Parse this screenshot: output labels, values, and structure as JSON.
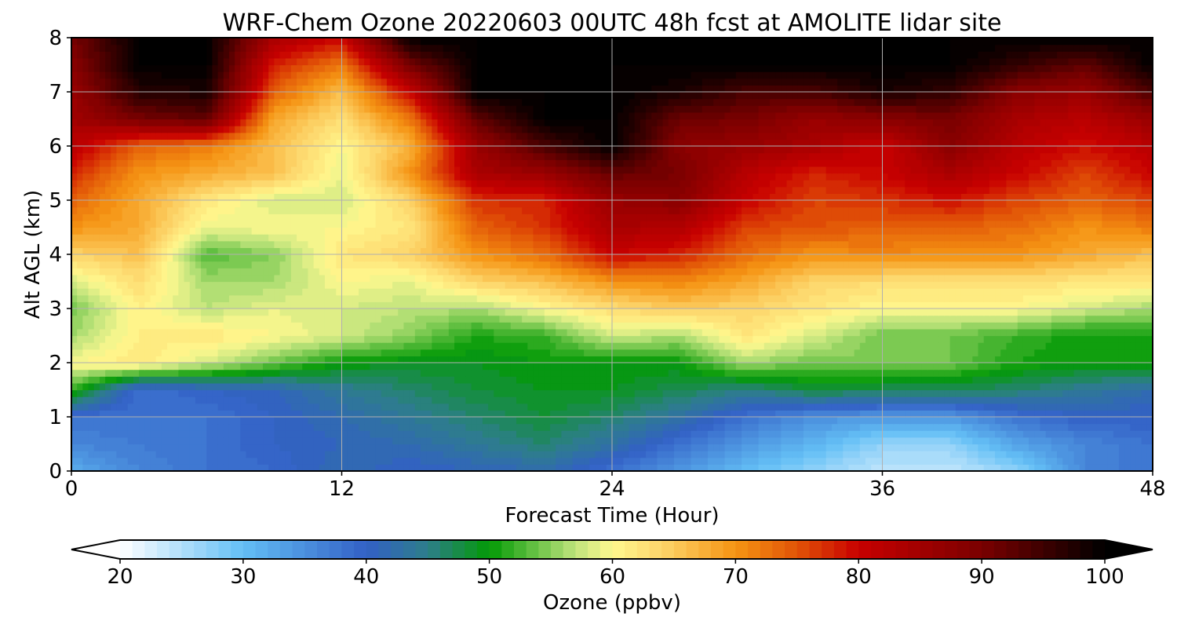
{
  "chart_data": {
    "type": "heatmap",
    "title": "WRF-Chem Ozone  20220603 00UTC 48h fcst at AMOLITE lidar site",
    "xlabel": "Forecast Time (Hour)",
    "ylabel": "Alt AGL (km)",
    "xlim": [
      0,
      48
    ],
    "ylim": [
      0,
      8
    ],
    "xticks": [
      0,
      12,
      24,
      36,
      48
    ],
    "yticks": [
      0,
      1,
      2,
      3,
      4,
      5,
      6,
      7,
      8
    ],
    "grid": true,
    "colorbar": {
      "label": "Ozone  (ppbv)",
      "orientation": "horizontal",
      "placement": "bottom",
      "min": 20,
      "max": 100,
      "levels_step": 1,
      "extend": "both",
      "ticks": [
        20,
        30,
        40,
        50,
        60,
        70,
        80,
        90,
        100
      ],
      "color_stops": [
        {
          "value": 20,
          "color": "#ffffff"
        },
        {
          "value": 30,
          "color": "#63bff5"
        },
        {
          "value": 40,
          "color": "#3360c6"
        },
        {
          "value": 45,
          "color": "#2d7e8a"
        },
        {
          "value": 50,
          "color": "#039a06"
        },
        {
          "value": 57,
          "color": "#bfe47c"
        },
        {
          "value": 60,
          "color": "#fff88f"
        },
        {
          "value": 64,
          "color": "#fdd56a"
        },
        {
          "value": 70,
          "color": "#f59413"
        },
        {
          "value": 75,
          "color": "#e15307"
        },
        {
          "value": 80,
          "color": "#c80000"
        },
        {
          "value": 90,
          "color": "#7a0000"
        },
        {
          "value": 100,
          "color": "#000000"
        }
      ]
    },
    "grid_times_h": [
      0,
      3,
      6,
      9,
      12,
      15,
      18,
      21,
      24,
      27,
      30,
      33,
      36,
      39,
      42,
      45,
      48
    ],
    "grid_alts_km": [
      0,
      0.5,
      1,
      1.5,
      2,
      2.5,
      3,
      3.5,
      4,
      4.5,
      5,
      5.5,
      6,
      6.5,
      7,
      7.5,
      8
    ],
    "ozone_ppbv": [
      [
        32,
        36,
        38,
        39,
        42,
        40,
        41,
        42,
        38,
        34,
        30,
        27,
        24,
        24,
        27,
        36,
        38
      ],
      [
        36,
        37,
        38,
        40,
        41,
        42,
        44,
        46,
        43,
        38,
        34,
        31,
        27,
        27,
        33,
        36,
        38
      ],
      [
        38,
        38,
        38,
        40,
        42,
        44,
        46,
        48,
        46,
        43,
        38,
        35,
        34,
        34,
        38,
        40,
        40
      ],
      [
        52,
        38,
        40,
        41,
        44,
        46,
        48,
        49,
        49,
        47,
        45,
        48,
        47,
        47,
        46,
        44,
        42
      ],
      [
        60,
        62,
        58,
        54,
        50,
        49,
        49,
        50,
        50,
        50,
        56,
        54,
        55,
        54,
        51,
        50,
        51
      ],
      [
        56,
        61,
        62,
        60,
        58,
        55,
        51,
        52,
        58,
        56,
        62,
        58,
        54,
        54,
        52,
        50,
        51
      ],
      [
        54,
        61,
        57,
        59,
        58,
        57,
        56,
        60,
        63,
        65,
        64,
        62,
        60,
        60,
        60,
        58,
        56
      ],
      [
        58,
        63,
        56,
        56,
        60,
        59,
        64,
        66,
        70,
        71,
        68,
        64,
        63,
        63,
        63,
        62,
        62
      ],
      [
        64,
        66,
        53,
        55,
        62,
        64,
        70,
        73,
        80,
        78,
        73,
        70,
        71,
        70,
        70,
        68,
        66
      ],
      [
        70,
        68,
        59,
        60,
        60,
        62,
        74,
        77,
        84,
        83,
        76,
        75,
        74,
        74,
        73,
        70,
        72
      ],
      [
        74,
        68,
        62,
        58,
        58,
        64,
        77,
        78,
        86,
        88,
        80,
        76,
        77,
        79,
        76,
        74,
        76
      ],
      [
        78,
        70,
        68,
        66,
        59,
        70,
        84,
        86,
        92,
        90,
        82,
        78,
        80,
        84,
        80,
        76,
        80
      ],
      [
        82,
        74,
        72,
        66,
        60,
        67,
        86,
        94,
        100,
        88,
        86,
        84,
        80,
        88,
        82,
        79,
        82
      ],
      [
        85,
        90,
        92,
        68,
        63,
        72,
        92,
        100,
        100,
        91,
        90,
        86,
        88,
        90,
        84,
        82,
        86
      ],
      [
        86,
        97,
        98,
        74,
        66,
        80,
        100,
        100,
        100,
        98,
        94,
        94,
        98,
        96,
        88,
        86,
        94
      ],
      [
        88,
        100,
        100,
        78,
        72,
        90,
        100,
        100,
        100,
        100,
        100,
        100,
        100,
        100,
        96,
        92,
        100
      ],
      [
        90,
        100,
        100,
        84,
        80,
        100,
        100,
        100,
        100,
        100,
        100,
        100,
        100,
        100,
        100,
        100,
        100
      ]
    ]
  }
}
